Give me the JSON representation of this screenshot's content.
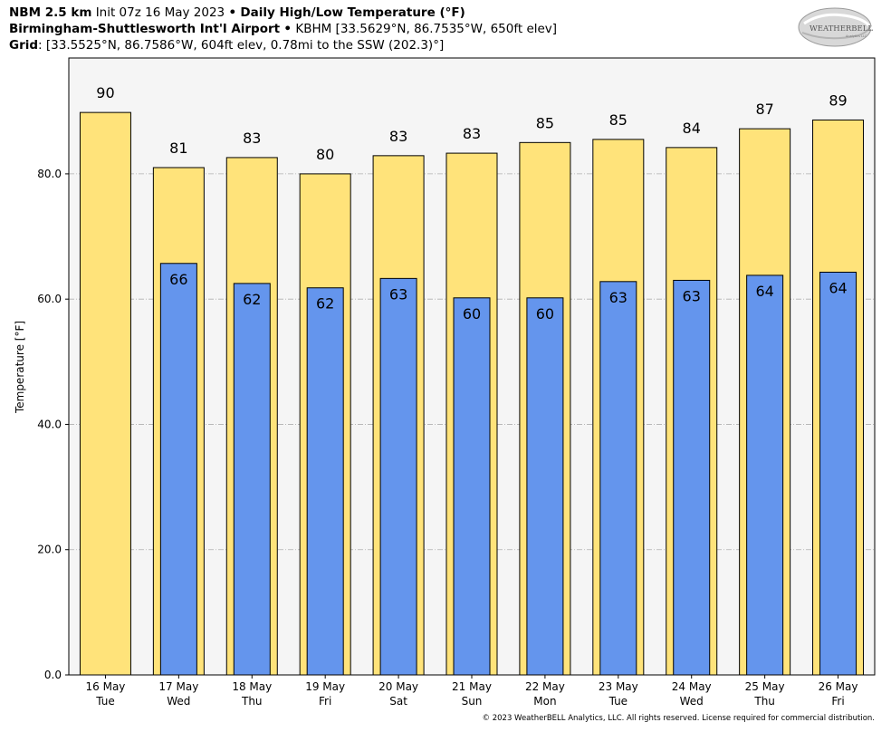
{
  "header": {
    "line1": {
      "model": "NBM 2.5 km",
      "init": "Init 07z 16 May 2023",
      "sep": "•",
      "product": "Daily High/Low Temperature (°F)"
    },
    "line2": {
      "station": "Birmingham-Shuttlesworth Int'l Airport",
      "sep": "•",
      "details": "KBHM [33.5629°N, 86.7535°W, 650ft elev]"
    },
    "line3": {
      "label": "Grid",
      "details": ": [33.5525°N, 86.7586°W, 604ft elev, 0.78mi to the SSW (202.3)°]"
    }
  },
  "logo": {
    "text_main": "WEATHERBELL",
    "text_sub": "Analytics LLC"
  },
  "footer": "© 2023 WeatherBELL Analytics, LLC. All rights reserved. License required for commercial distribution.",
  "colors": {
    "high": "#ffe37a",
    "low": "#6495ed",
    "plot_bg": "#f5f5f5",
    "grid": "#b0b0b0"
  },
  "chart_data": {
    "type": "bar",
    "ylabel": "Temperature [°F]",
    "ylim": [
      0,
      98.5
    ],
    "yticks": [
      "0.0",
      "20.0",
      "40.0",
      "60.0",
      "80.0"
    ],
    "ytick_values": [
      0,
      20,
      40,
      60,
      80
    ],
    "grid": "horizontal dash-dot",
    "categories": [
      {
        "date": "16 May",
        "day": "Tue"
      },
      {
        "date": "17 May",
        "day": "Wed"
      },
      {
        "date": "18 May",
        "day": "Thu"
      },
      {
        "date": "19 May",
        "day": "Fri"
      },
      {
        "date": "20 May",
        "day": "Sat"
      },
      {
        "date": "21 May",
        "day": "Sun"
      },
      {
        "date": "22 May",
        "day": "Mon"
      },
      {
        "date": "23 May",
        "day": "Tue"
      },
      {
        "date": "24 May",
        "day": "Wed"
      },
      {
        "date": "25 May",
        "day": "Thu"
      },
      {
        "date": "26 May",
        "day": "Fri"
      }
    ],
    "series": [
      {
        "key": "high",
        "values": [
          89.8,
          81.0,
          82.6,
          80.0,
          82.9,
          83.3,
          85.0,
          85.5,
          84.2,
          87.2,
          88.6
        ],
        "labels": [
          "90",
          "81",
          "83",
          "80",
          "83",
          "83",
          "85",
          "85",
          "84",
          "87",
          "89"
        ]
      },
      {
        "key": "low",
        "values": [
          null,
          65.7,
          62.5,
          61.8,
          63.3,
          60.2,
          60.2,
          62.8,
          63.0,
          63.8,
          64.3
        ],
        "labels": [
          null,
          "66",
          "62",
          "62",
          "63",
          "60",
          "60",
          "63",
          "63",
          "64",
          "64"
        ]
      }
    ]
  }
}
